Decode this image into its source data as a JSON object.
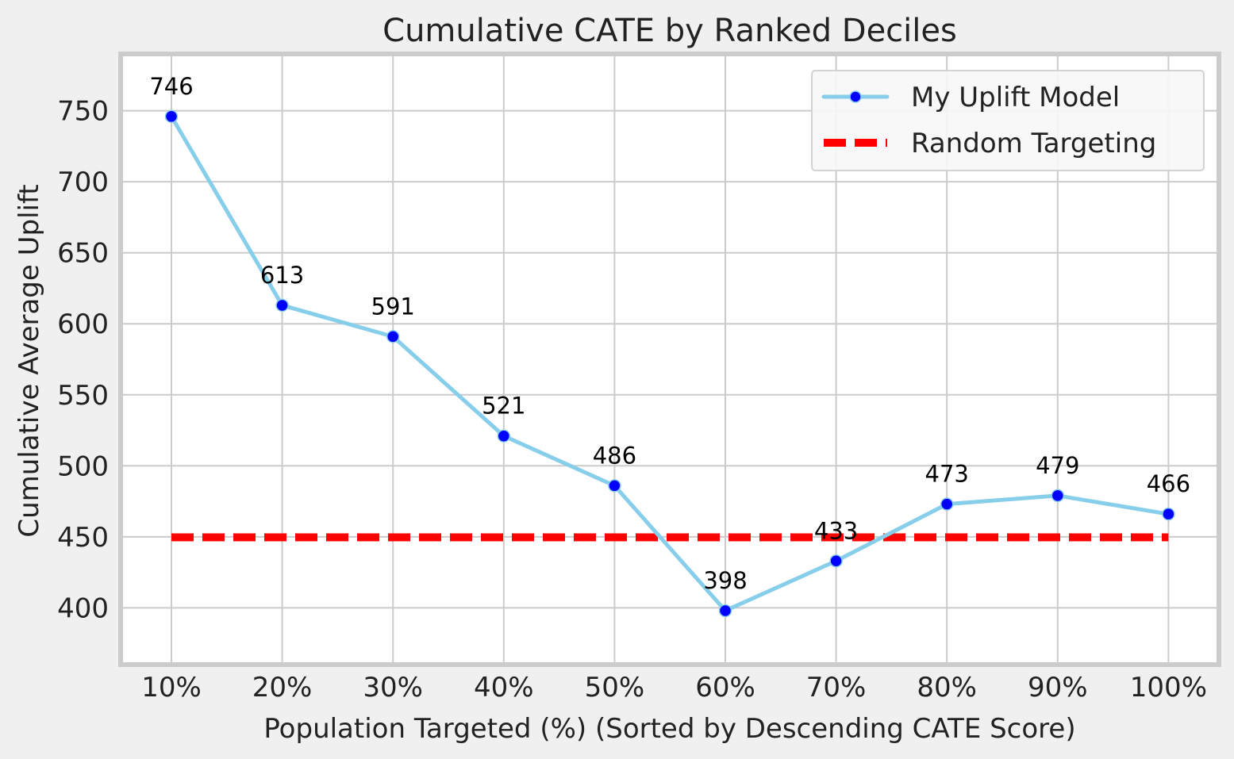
{
  "chart_data": {
    "type": "line",
    "title": "Cumulative CATE by Ranked Deciles",
    "xlabel": "Population Targeted (%) (Sorted by Descending CATE Score)",
    "ylabel": "Cumulative Average Uplift",
    "categories": [
      "10%",
      "20%",
      "30%",
      "40%",
      "50%",
      "60%",
      "70%",
      "80%",
      "90%",
      "100%"
    ],
    "ylim": [
      360,
      790
    ],
    "yticks": [
      400,
      450,
      500,
      550,
      600,
      650,
      700,
      750
    ],
    "grid": true,
    "legend_position": "top-right",
    "series": [
      {
        "name": "My Uplift Model",
        "values": [
          746,
          613,
          591,
          521,
          486,
          398,
          433,
          473,
          479,
          466
        ],
        "data_labels": [
          "746",
          "613",
          "591",
          "521",
          "486",
          "398",
          "433",
          "473",
          "479",
          "466"
        ],
        "line_color": "#87ceeb",
        "marker_color": "#0000ff",
        "style": "solid-with-markers"
      },
      {
        "name": "Random Targeting",
        "values": [
          449.6,
          449.6,
          449.6,
          449.6,
          449.6,
          449.6,
          449.6,
          449.6,
          449.6,
          449.6
        ],
        "line_color": "#ff0000",
        "style": "dashed"
      }
    ]
  }
}
